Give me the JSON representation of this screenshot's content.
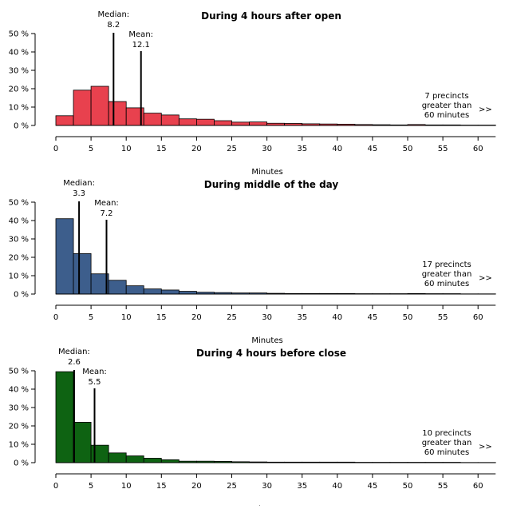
{
  "chart_data": [
    {
      "type": "bar",
      "title": "During 4 hours after open",
      "xlabel": "Minutes",
      "ylabel": "",
      "color": "#e8414e",
      "bin_width": 2.5,
      "bin_start": 0,
      "values": [
        5.3,
        19.2,
        21.3,
        13.0,
        9.6,
        6.7,
        5.7,
        3.6,
        3.4,
        2.6,
        1.8,
        1.9,
        1.2,
        1.1,
        0.9,
        0.8,
        0.7,
        0.5,
        0.4,
        0.3,
        0.5,
        0.3,
        0.3,
        0.2,
        0.2
      ],
      "xlim": [
        0,
        62.5
      ],
      "ylim": [
        0,
        50
      ],
      "x_ticks": [
        "0",
        "5",
        "10",
        "15",
        "20",
        "25",
        "30",
        "35",
        "40",
        "45",
        "50",
        "55",
        "60"
      ],
      "y_ticks": [
        "0 %",
        "10 %",
        "20 %",
        "30 %",
        "40 %",
        "50 %"
      ],
      "median": {
        "label": "Median:",
        "value": 8.2,
        "value_text": "8.2"
      },
      "mean": {
        "label": "Mean:",
        "value": 12.1,
        "value_text": "12.1"
      },
      "overflow_note": [
        "7 precincts",
        "greater than",
        "60 minutes"
      ],
      "overflow_arrow": ">>"
    },
    {
      "type": "bar",
      "title": "During middle of the day",
      "xlabel": "Minutes",
      "ylabel": "",
      "color": "#3d5e8c",
      "bin_width": 2.5,
      "bin_start": 0,
      "values": [
        41.0,
        22.0,
        11.0,
        7.5,
        4.5,
        2.8,
        2.2,
        1.5,
        1.0,
        0.8,
        0.6,
        0.6,
        0.4,
        0.3,
        0.3,
        0.3,
        0.3,
        0.2,
        0.2,
        0.2,
        0.3,
        0.2,
        0.2,
        0.1,
        0.1
      ],
      "xlim": [
        0,
        62.5
      ],
      "ylim": [
        0,
        50
      ],
      "x_ticks": [
        "0",
        "5",
        "10",
        "15",
        "20",
        "25",
        "30",
        "35",
        "40",
        "45",
        "50",
        "55",
        "60"
      ],
      "y_ticks": [
        "0 %",
        "10 %",
        "20 %",
        "30 %",
        "40 %",
        "50 %"
      ],
      "median": {
        "label": "Median:",
        "value": 3.3,
        "value_text": "3.3"
      },
      "mean": {
        "label": "Mean:",
        "value": 7.2,
        "value_text": "7.2"
      },
      "overflow_note": [
        "17 precincts",
        "greater than",
        "60 minutes"
      ],
      "overflow_arrow": ">>"
    },
    {
      "type": "bar",
      "title": "During 4 hours before close",
      "xlabel": "Minutes",
      "ylabel": "",
      "color": "#0e6312",
      "bin_width": 2.5,
      "bin_start": 0,
      "values": [
        49.5,
        22.0,
        9.5,
        5.3,
        3.7,
        2.4,
        1.6,
        0.8,
        0.8,
        0.7,
        0.5,
        0.4,
        0.3,
        0.3,
        0.3,
        0.3,
        0.3,
        0.2,
        0.2,
        0.2,
        0.2,
        0.2,
        0.2,
        0.1,
        0.1
      ],
      "xlim": [
        0,
        62.5
      ],
      "ylim": [
        0,
        50
      ],
      "x_ticks": [
        "0",
        "5",
        "10",
        "15",
        "20",
        "25",
        "30",
        "35",
        "40",
        "45",
        "50",
        "55",
        "60"
      ],
      "y_ticks": [
        "0 %",
        "10 %",
        "20 %",
        "30 %",
        "40 %",
        "50 %"
      ],
      "median": {
        "label": "Median:",
        "value": 2.6,
        "value_text": "2.6"
      },
      "mean": {
        "label": "Mean:",
        "value": 5.5,
        "value_text": "5.5"
      },
      "overflow_note": [
        "10 precincts",
        "greater than",
        "60 minutes"
      ],
      "overflow_arrow": ">>"
    }
  ]
}
